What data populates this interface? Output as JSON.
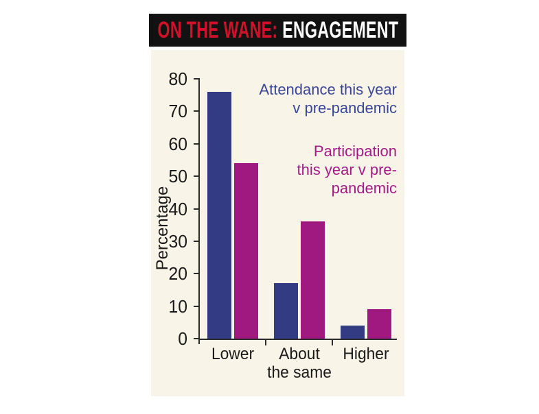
{
  "header": {
    "title_red": "ON THE WANE:",
    "title_white": "ENGAGEMENT"
  },
  "chart_data": {
    "type": "bar",
    "title": "ON THE WANE: ENGAGEMENT",
    "categories": [
      "Lower",
      "About\nthe same",
      "Higher"
    ],
    "series": [
      {
        "name": "Attendance this year v pre-pandemic",
        "legend_text": "Attendance this year\nv pre-pandemic",
        "color": "#333B82",
        "legend_color": "#3A4697",
        "values": [
          76,
          17,
          4
        ]
      },
      {
        "name": "Participation this year v pre-pandemic",
        "legend_text": "Participation\nthis year v pre-\npandemic",
        "color": "#A01981",
        "legend_color": "#A31A87",
        "values": [
          54,
          36,
          9
        ]
      }
    ],
    "xlabel": "",
    "ylabel": "Percentage",
    "ylim": [
      0,
      80
    ],
    "ytick_step": 10,
    "grid": false,
    "legend_position": "top-right"
  },
  "colors": {
    "page_bg": "#FFFFFF",
    "panel_bg": "#F8F4E8",
    "banner_bg": "#121212",
    "title_red": "#CF1129",
    "title_white": "#FFFFFF",
    "axis": "#2B2B2B",
    "text": "#1A1A1A"
  }
}
